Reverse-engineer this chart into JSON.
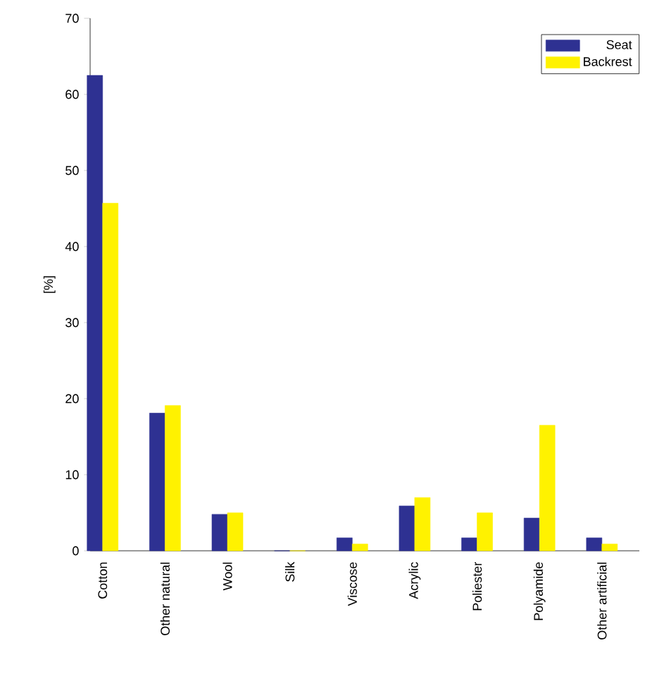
{
  "chart_data": {
    "type": "bar",
    "ylabel": "[%]",
    "categories": [
      "Cotton",
      "Other natural",
      "Wool",
      "Silk",
      "Viscose",
      "Acrylic",
      "Poliester",
      "Polyamide",
      "Other artificial"
    ],
    "series": [
      {
        "name": "Seat",
        "color": "#2e3192",
        "values": [
          62.5,
          18.1,
          4.8,
          0,
          1.7,
          5.9,
          1.7,
          4.3,
          1.7
        ]
      },
      {
        "name": "Backrest",
        "color": "#fff200",
        "values": [
          45.7,
          19.1,
          5.0,
          0,
          0.9,
          7.0,
          5.0,
          16.5,
          0.9
        ]
      }
    ],
    "ylim": [
      0,
      70
    ],
    "yticks": [
      0,
      10,
      20,
      30,
      40,
      50,
      60,
      70
    ],
    "legend": "top right"
  }
}
